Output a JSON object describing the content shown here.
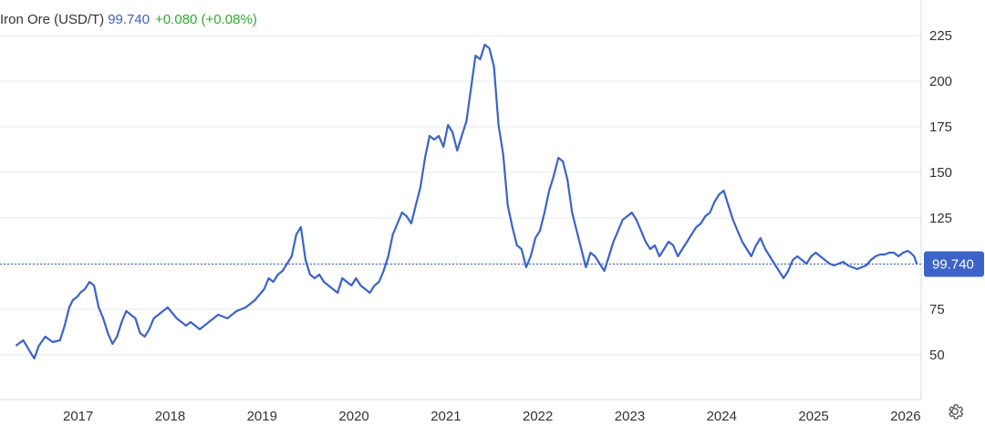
{
  "header": {
    "title": "Iron Ore (USD/T)",
    "price": "99.740",
    "change": "+0.080 (+0.08%)"
  },
  "price_label": "99.740",
  "colors": {
    "line": "#3b63c9",
    "price_label_bg": "#3b63c9",
    "change_up": "#2faa2f",
    "grid": "#e3e8ef"
  },
  "icons": {
    "settings": "gear-icon"
  },
  "chart_data": {
    "type": "line",
    "title": "Iron Ore (USD/T)",
    "xlabel": "",
    "ylabel": "",
    "y_ticks": [
      50,
      75,
      125,
      150,
      175,
      200,
      225
    ],
    "x_ticks": [
      "2017",
      "2018",
      "2019",
      "2020",
      "2021",
      "2022",
      "2023",
      "2024",
      "2025",
      "2026"
    ],
    "ylim": [
      30,
      240
    ],
    "xlim": [
      2016.3,
      2026.25
    ],
    "grid": true,
    "current_value": 99.74,
    "series": [
      {
        "x": [
          2016.3,
          2016.38,
          2016.45,
          2016.5,
          2016.55,
          2016.62,
          2016.7,
          2016.78,
          2016.83,
          2016.88,
          2016.92,
          2016.97,
          2017.0,
          2017.05,
          2017.1,
          2017.15,
          2017.2,
          2017.25,
          2017.3,
          2017.35,
          2017.4,
          2017.45,
          2017.5,
          2017.55,
          2017.6,
          2017.65,
          2017.7,
          2017.75,
          2017.8,
          2017.85,
          2017.9,
          2017.95,
          2018.0,
          2018.05,
          2018.1,
          2018.15,
          2018.2,
          2018.25,
          2018.3,
          2018.4,
          2018.5,
          2018.6,
          2018.7,
          2018.8,
          2018.9,
          2019.0,
          2019.05,
          2019.1,
          2019.15,
          2019.2,
          2019.25,
          2019.3,
          2019.35,
          2019.4,
          2019.45,
          2019.5,
          2019.55,
          2019.6,
          2019.65,
          2019.7,
          2019.75,
          2019.8,
          2019.85,
          2019.9,
          2019.95,
          2020.0,
          2020.05,
          2020.1,
          2020.15,
          2020.2,
          2020.25,
          2020.3,
          2020.35,
          2020.4,
          2020.45,
          2020.5,
          2020.55,
          2020.6,
          2020.65,
          2020.7,
          2020.75,
          2020.8,
          2020.85,
          2020.9,
          2020.95,
          2021.0,
          2021.05,
          2021.1,
          2021.15,
          2021.2,
          2021.25,
          2021.3,
          2021.35,
          2021.4,
          2021.45,
          2021.5,
          2021.55,
          2021.6,
          2021.65,
          2021.7,
          2021.75,
          2021.8,
          2021.85,
          2021.9,
          2021.95,
          2022.0,
          2022.05,
          2022.1,
          2022.15,
          2022.2,
          2022.25,
          2022.3,
          2022.35,
          2022.4,
          2022.45,
          2022.5,
          2022.55,
          2022.6,
          2022.65,
          2022.7,
          2022.75,
          2022.8,
          2022.85,
          2022.9,
          2022.95,
          2023.0,
          2023.05,
          2023.1,
          2023.15,
          2023.2,
          2023.25,
          2023.3,
          2023.35,
          2023.4,
          2023.45,
          2023.5,
          2023.55,
          2023.6,
          2023.65,
          2023.7,
          2023.75,
          2023.8,
          2023.85,
          2023.9,
          2023.95,
          2024.0,
          2024.05,
          2024.1,
          2024.15,
          2024.2,
          2024.25,
          2024.3,
          2024.35,
          2024.4,
          2024.45,
          2024.5,
          2024.55,
          2024.6,
          2024.65,
          2024.7,
          2024.75,
          2024.8,
          2024.85,
          2024.9,
          2024.95,
          2025.0,
          2025.05,
          2025.1,
          2025.15,
          2025.2,
          2025.25,
          2025.3,
          2025.35,
          2025.4,
          2025.45,
          2025.5,
          2025.55,
          2025.6,
          2025.65,
          2025.7,
          2025.75,
          2025.8,
          2025.85,
          2025.9,
          2025.95,
          2026.0,
          2026.03,
          2026.07,
          2026.1
        ],
        "y": [
          55,
          58,
          52,
          48,
          55,
          60,
          57,
          58,
          66,
          76,
          80,
          82,
          84,
          86,
          90,
          88,
          76,
          70,
          62,
          56,
          60,
          68,
          74,
          72,
          70,
          62,
          60,
          64,
          70,
          72,
          74,
          76,
          73,
          70,
          68,
          66,
          68,
          66,
          64,
          68,
          72,
          70,
          74,
          76,
          80,
          86,
          92,
          90,
          94,
          96,
          100,
          104,
          116,
          120,
          102,
          94,
          92,
          94,
          90,
          88,
          86,
          84,
          92,
          90,
          88,
          92,
          88,
          86,
          84,
          88,
          90,
          96,
          104,
          116,
          122,
          128,
          126,
          122,
          132,
          142,
          158,
          170,
          168,
          170,
          164,
          176,
          172,
          162,
          170,
          178,
          196,
          214,
          212,
          220,
          218,
          208,
          176,
          160,
          132,
          120,
          110,
          108,
          98,
          104,
          114,
          118,
          128,
          140,
          148,
          158,
          156,
          146,
          128,
          118,
          108,
          98,
          106,
          104,
          100,
          96,
          104,
          112,
          118,
          124,
          126,
          128,
          124,
          118,
          112,
          108,
          110,
          104,
          108,
          112,
          110,
          104,
          108,
          112,
          116,
          120,
          122,
          126,
          128,
          134,
          138,
          140,
          132,
          124,
          118,
          112,
          108,
          104,
          110,
          114,
          108,
          104,
          100,
          96,
          92,
          96,
          102,
          104,
          102,
          100,
          104,
          106,
          104,
          102,
          100,
          99,
          100,
          101,
          99,
          98,
          97,
          98,
          99,
          102,
          104,
          105,
          105,
          106,
          106,
          104,
          106,
          107,
          106,
          104,
          99.74
        ]
      }
    ]
  }
}
